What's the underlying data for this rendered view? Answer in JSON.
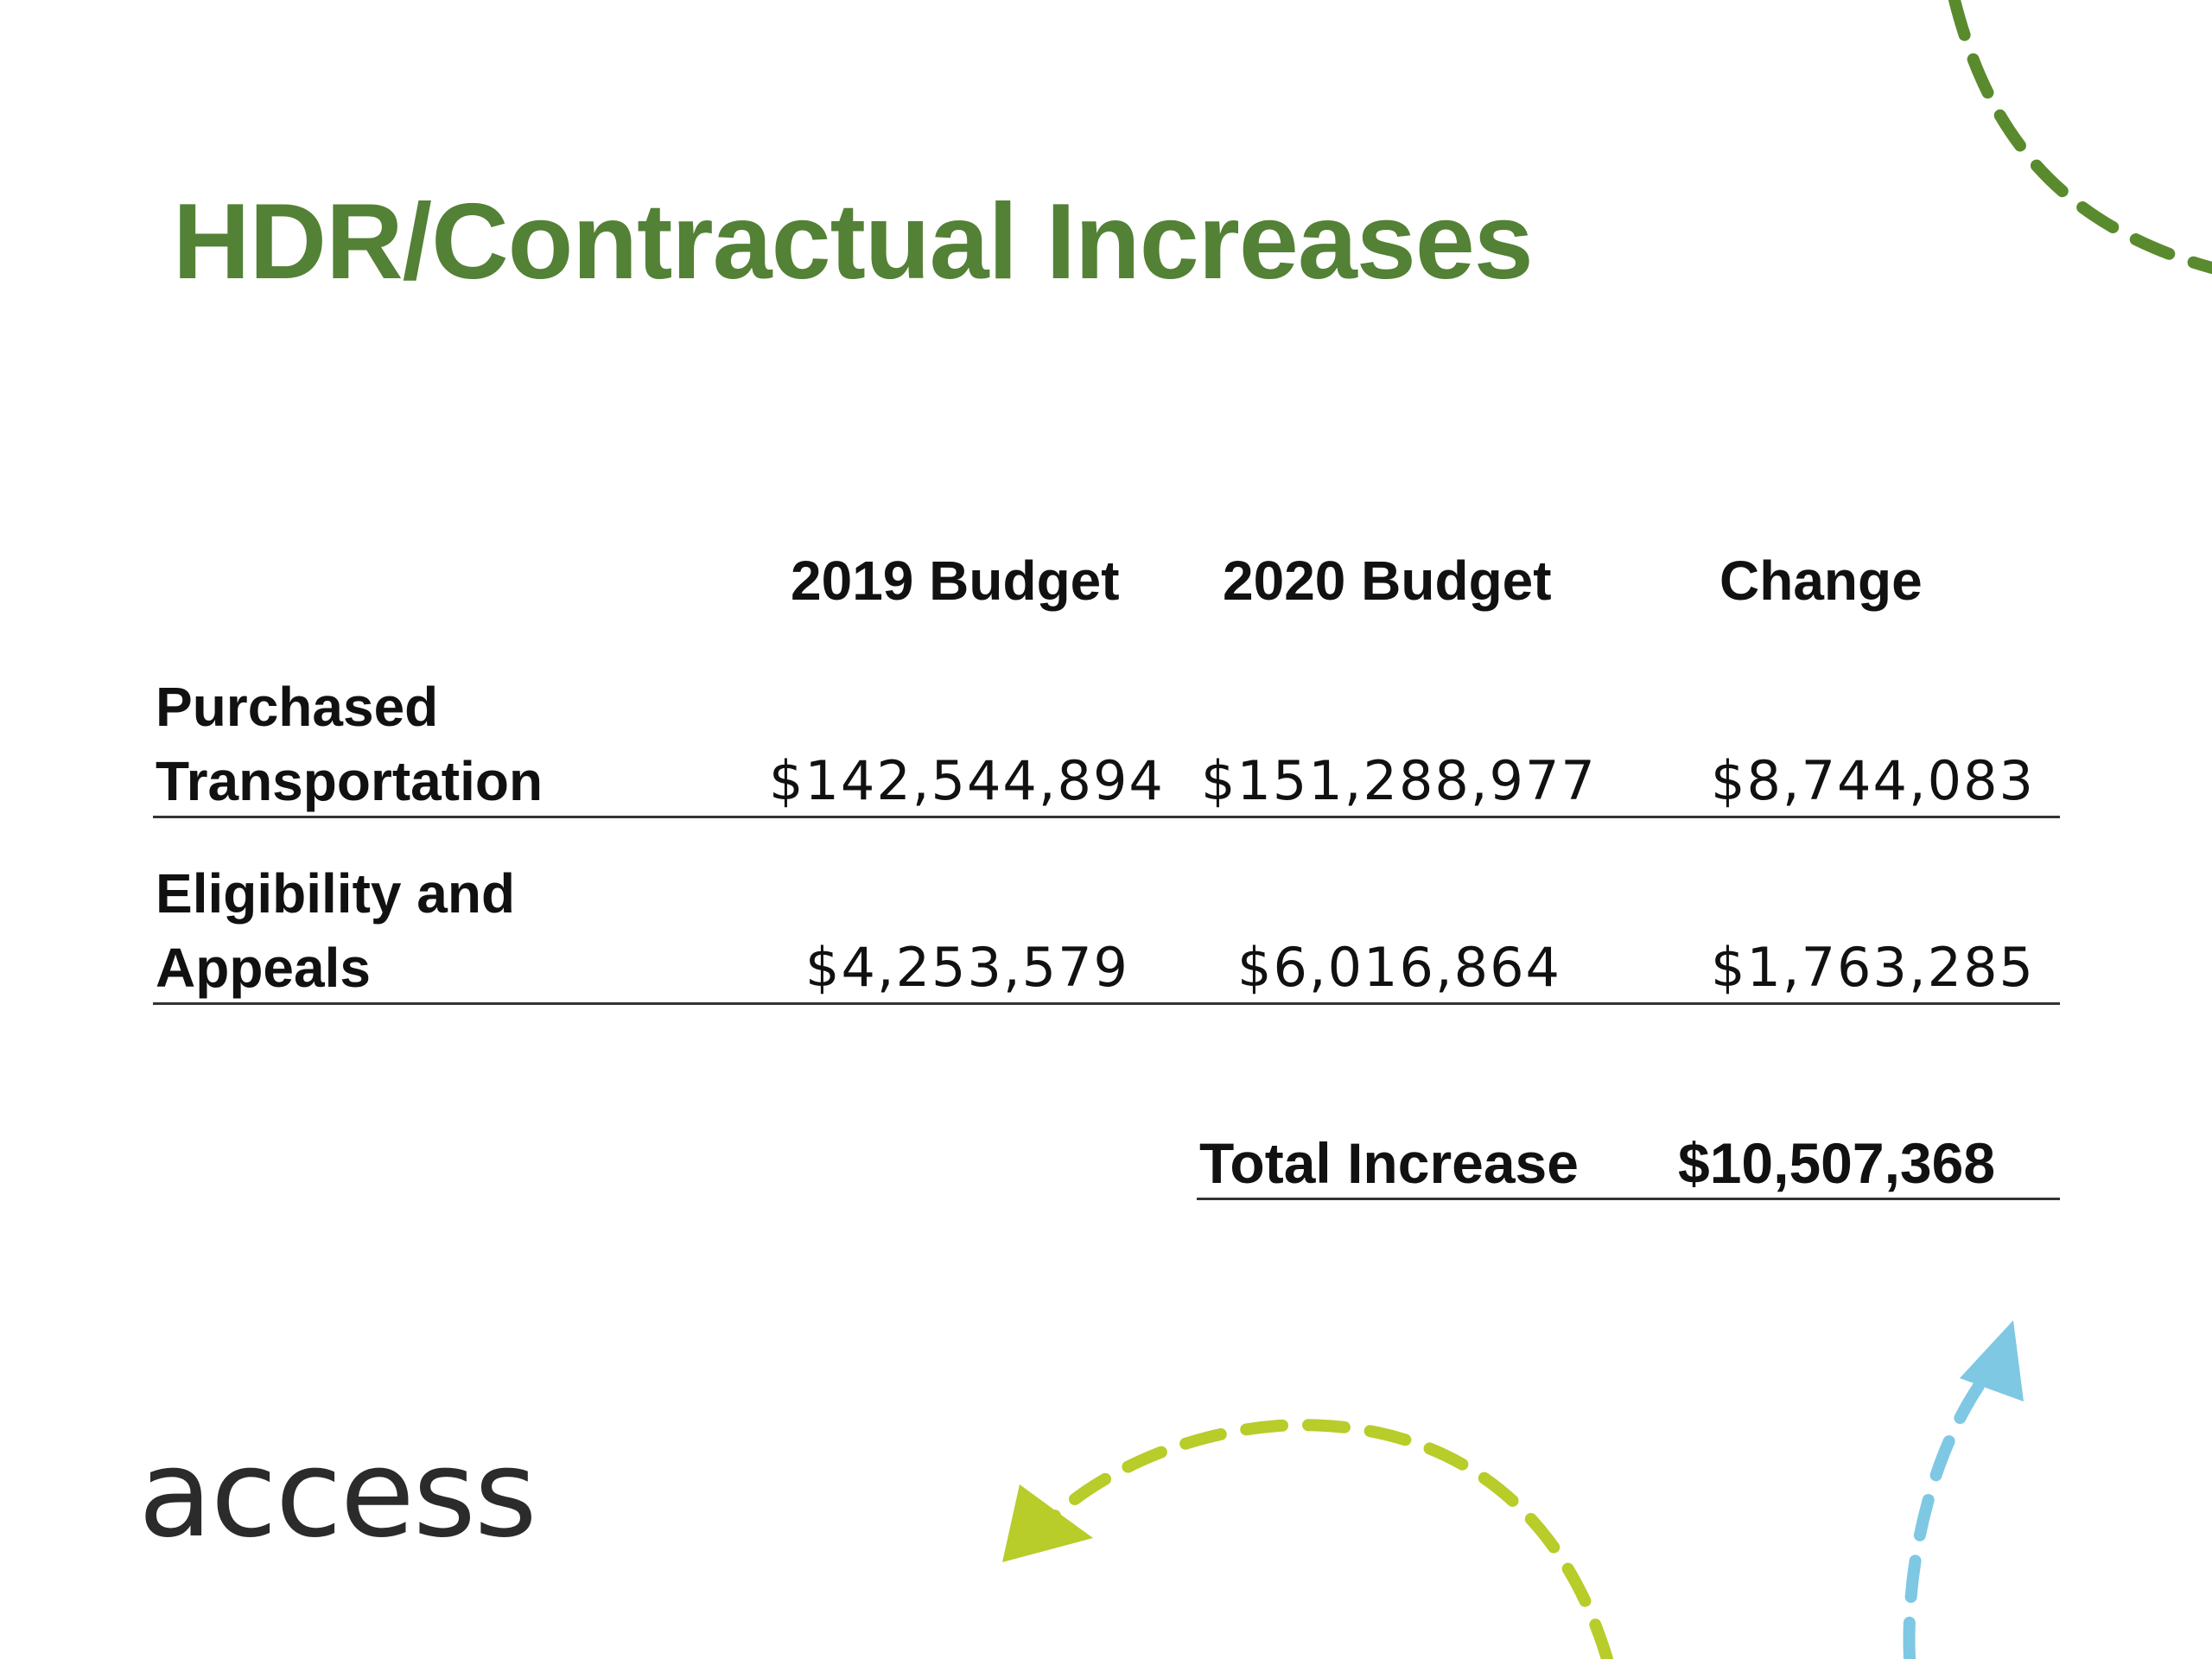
{
  "slide": {
    "title": "HDR/Contractual Increases",
    "logo_text": "access",
    "colors": {
      "title": "#538135",
      "arc_top_right": "#5a8a2e",
      "arc_bottom": "#b8cc2a",
      "arc_right": "#7ec8e3"
    }
  },
  "table": {
    "headers": [
      "2019 Budget",
      "2020 Budget",
      "Change"
    ],
    "rows": [
      {
        "label_line1": "Purchased",
        "label_line2": "Transportation",
        "budget_2019": "$142,544,894",
        "budget_2020": "$151,288,977",
        "change": "$8,744,083"
      },
      {
        "label_line1": "Eligibility and",
        "label_line2": "Appeals",
        "budget_2019": "$4,253,579",
        "budget_2020": "$6,016,864",
        "change": "$1,763,285"
      }
    ],
    "total_label": "Total Increase",
    "total_value": "$10,507,368"
  }
}
